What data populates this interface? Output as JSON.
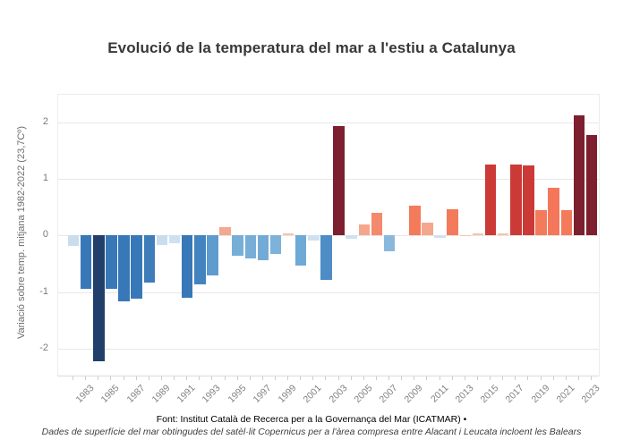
{
  "title": "Evolució de la temperatura del mar a l'estiu a Catalunya",
  "footer": {
    "line1": "Font: Institut Català de Recerca per a la Governança del Mar (ICATMAR) •",
    "line2": "Dades de superfície del mar obtingudes del satèl·lit Copernicus per a l'àrea compresa entre Alacant i Leucata incloent les Balears"
  },
  "chart_data": {
    "type": "bar",
    "title": "Evolució de la temperatura del mar a l'estiu a Catalunya",
    "xlabel": "",
    "ylabel": "Variació sobre temp. mitjana 1982-2022 (23,7Cº)",
    "ylim": [
      -2.49,
      2.49
    ],
    "grid": true,
    "legend": false,
    "yticks": [
      2,
      1,
      0,
      -1,
      -2
    ],
    "ytick_labels": [
      "2",
      "1",
      "0",
      "-1",
      "-2"
    ],
    "years": [
      1982,
      1983,
      1984,
      1985,
      1986,
      1987,
      1988,
      1989,
      1990,
      1991,
      1992,
      1993,
      1994,
      1995,
      1996,
      1997,
      1998,
      1999,
      2000,
      2001,
      2002,
      2003,
      2004,
      2005,
      2006,
      2007,
      2008,
      2009,
      2010,
      2011,
      2012,
      2013,
      2014,
      2015,
      2016,
      2017,
      2018,
      2019,
      2020,
      2021,
      2022,
      2023
    ],
    "xtick_labels": [
      "1983",
      "1985",
      "1987",
      "1989",
      "1991",
      "1993",
      "1995",
      "1997",
      "1999",
      "2001",
      "2003",
      "2005",
      "2007",
      "2009",
      "2011",
      "2013",
      "2015",
      "2017",
      "2019",
      "2021",
      "2023"
    ],
    "values": [
      -0.18,
      -0.95,
      -2.22,
      -0.94,
      -1.16,
      -1.12,
      -0.83,
      -0.17,
      -0.14,
      -1.1,
      -0.86,
      -0.7,
      0.15,
      -0.36,
      -0.41,
      -0.44,
      -0.33,
      0.04,
      -0.53,
      -0.09,
      -0.78,
      1.93,
      -0.06,
      0.19,
      0.4,
      -0.28,
      0.0,
      0.53,
      0.22,
      -0.04,
      0.46,
      0.01,
      0.04,
      1.25,
      0.03,
      1.25,
      1.24,
      0.44,
      0.85,
      0.44,
      2.13,
      1.77
    ],
    "bar_colors": [
      "#c9ddef",
      "#3878b8",
      "#223f6b",
      "#3878b8",
      "#3878b8",
      "#3878b8",
      "#3f7cba",
      "#c9ddef",
      "#cfe1f0",
      "#3878b8",
      "#4383bf",
      "#5e9bce",
      "#f2a98f",
      "#77aed8",
      "#77aed8",
      "#74abd6",
      "#7db2da",
      "#f6c3ae",
      "#6fa9d5",
      "#cfe1f0",
      "#4e8cc5",
      "#7d1f2e",
      "#cfe1f0",
      "#f4a78c",
      "#f48a6c",
      "#8ab8dd",
      "#f6c3ae",
      "#f47a5c",
      "#f4a78c",
      "#cfe1f0",
      "#f47a5c",
      "#f6c3ae",
      "#f6c3ae",
      "#cb3a36",
      "#f6c3ae",
      "#cb3a36",
      "#cb3a36",
      "#f47a5c",
      "#f4775b",
      "#f47a5c",
      "#7d1f2e",
      "#7d1f2e"
    ],
    "palette": {
      "strong_negative": "#223f6b",
      "negative": "#3878b8",
      "mild_negative": "#77aed8",
      "near_zero_negative": "#cfe1f0",
      "near_zero_positive": "#f6c3ae",
      "mild_positive": "#f2a98f",
      "positive": "#f4775b",
      "high_positive": "#cb3a36",
      "strong_positive": "#7d1f2e"
    }
  }
}
